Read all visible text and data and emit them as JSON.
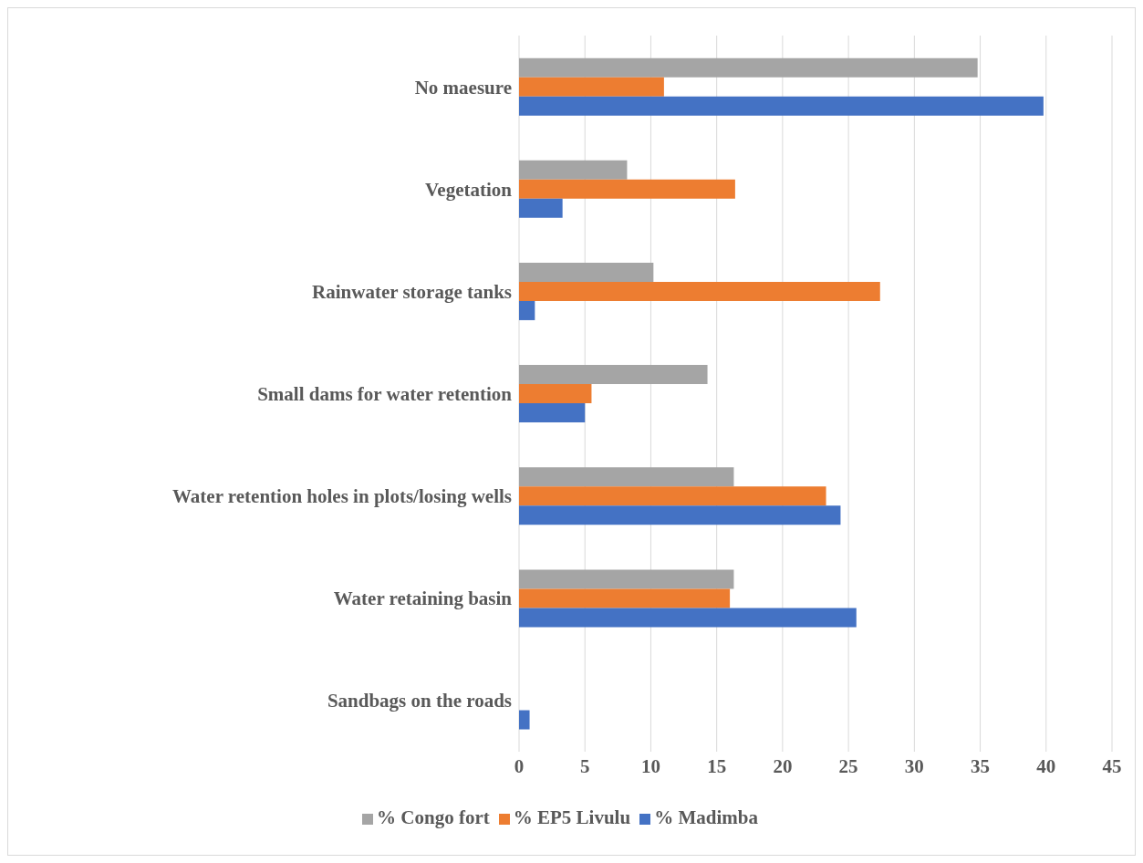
{
  "chart_data": {
    "type": "bar",
    "orientation": "horizontal",
    "categories": [
      "No maesure",
      "Vegetation",
      "Rainwater storage tanks",
      "Small dams for water retention",
      "Water retention holes in plots/losing wells",
      "Water retaining basin",
      "Sandbags on the roads"
    ],
    "series": [
      {
        "name": "% Congo fort",
        "color": "#a5a5a5",
        "values": [
          34.8,
          8.2,
          10.2,
          14.3,
          16.3,
          16.3,
          0
        ]
      },
      {
        "name": "% EP5 Livulu",
        "color": "#ed7d31",
        "values": [
          11.0,
          16.4,
          27.4,
          5.5,
          23.3,
          16.0,
          0
        ]
      },
      {
        "name": "% Madimba",
        "color": "#4472c4",
        "values": [
          39.8,
          3.3,
          1.2,
          5.0,
          24.4,
          25.6,
          0.8
        ]
      }
    ],
    "xlim": [
      0,
      45
    ],
    "xticks": [
      0,
      5,
      10,
      15,
      20,
      25,
      30,
      35,
      40,
      45
    ],
    "grid": "x",
    "legend": "bottom"
  }
}
